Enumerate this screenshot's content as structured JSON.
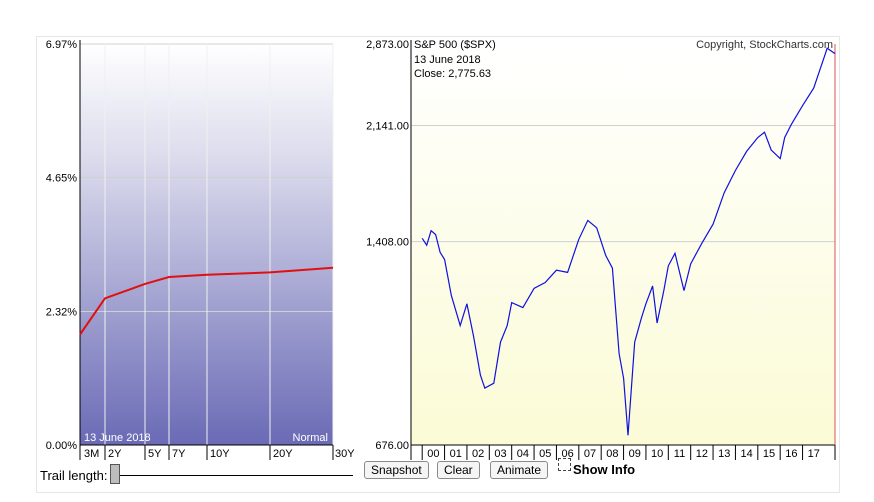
{
  "chart_data": [
    {
      "type": "line",
      "title": "",
      "annotation_date": "13  June 2018",
      "annotation_shape": "Normal",
      "y_tick_labels": [
        "6.97%",
        "4.65%",
        "2.32%",
        "0.00%"
      ],
      "y_ticks": [
        6.97,
        4.65,
        2.32,
        0.0
      ],
      "ylim": [
        0.0,
        6.97
      ],
      "categories": [
        "3M",
        "2Y",
        "5Y",
        "7Y",
        "10Y",
        "20Y",
        "30Y"
      ],
      "series": [
        {
          "values": [
            1.92,
            2.55,
            2.8,
            2.92,
            2.96,
            3.0,
            3.08
          ]
        }
      ],
      "grid": true
    },
    {
      "type": "line",
      "title": "S&P 500 ($SPX)",
      "copyright": "Copyright, StockCharts.com",
      "info_date": "13  June 2018",
      "info_close": "Close: 2,775.63",
      "y_scale": "log",
      "y_tick_labels": [
        "2,873.00",
        "2,141.00",
        "1,408.00",
        "676.00"
      ],
      "y_ticks": [
        2873,
        2141,
        1408,
        676
      ],
      "ylim": [
        676,
        2873
      ],
      "x_tick_labels": [
        "00",
        "01",
        "02",
        "03",
        "04",
        "05",
        "06",
        "07",
        "08",
        "09",
        "10",
        "11",
        "12",
        "13",
        "14",
        "15",
        "16",
        "17"
      ],
      "x": [
        2000.0,
        2000.2,
        2000.4,
        2000.6,
        2000.8,
        2001.0,
        2001.3,
        2001.7,
        2002.0,
        2002.3,
        2002.6,
        2002.8,
        2003.2,
        2003.5,
        2003.8,
        2004.0,
        2004.5,
        2005.0,
        2005.5,
        2006.0,
        2006.5,
        2007.0,
        2007.4,
        2007.8,
        2008.2,
        2008.5,
        2008.8,
        2009.0,
        2009.2,
        2009.5,
        2009.8,
        2010.0,
        2010.3,
        2010.5,
        2010.8,
        2011.0,
        2011.3,
        2011.7,
        2012.0,
        2012.5,
        2013.0,
        2013.5,
        2014.0,
        2014.5,
        2015.0,
        2015.3,
        2015.6,
        2016.0,
        2016.2,
        2016.5,
        2017.0,
        2017.5,
        2018.0,
        2018.1,
        2018.45
      ],
      "values": [
        1425,
        1390,
        1465,
        1445,
        1355,
        1320,
        1160,
        1040,
        1125,
        1000,
        870,
        830,
        845,
        980,
        1040,
        1130,
        1110,
        1190,
        1215,
        1270,
        1260,
        1420,
        1520,
        1480,
        1340,
        1280,
        940,
        860,
        700,
        980,
        1070,
        1125,
        1200,
        1050,
        1180,
        1290,
        1350,
        1180,
        1300,
        1400,
        1500,
        1680,
        1820,
        1950,
        2050,
        2090,
        1960,
        1900,
        2050,
        2150,
        2300,
        2450,
        2760,
        2830,
        2775
      ]
    }
  ],
  "controls": {
    "trail_label": "Trail length:",
    "snapshot_label": "Snapshot",
    "clear_label": "Clear",
    "animate_label": "Animate",
    "show_info_label": "Show Info"
  }
}
